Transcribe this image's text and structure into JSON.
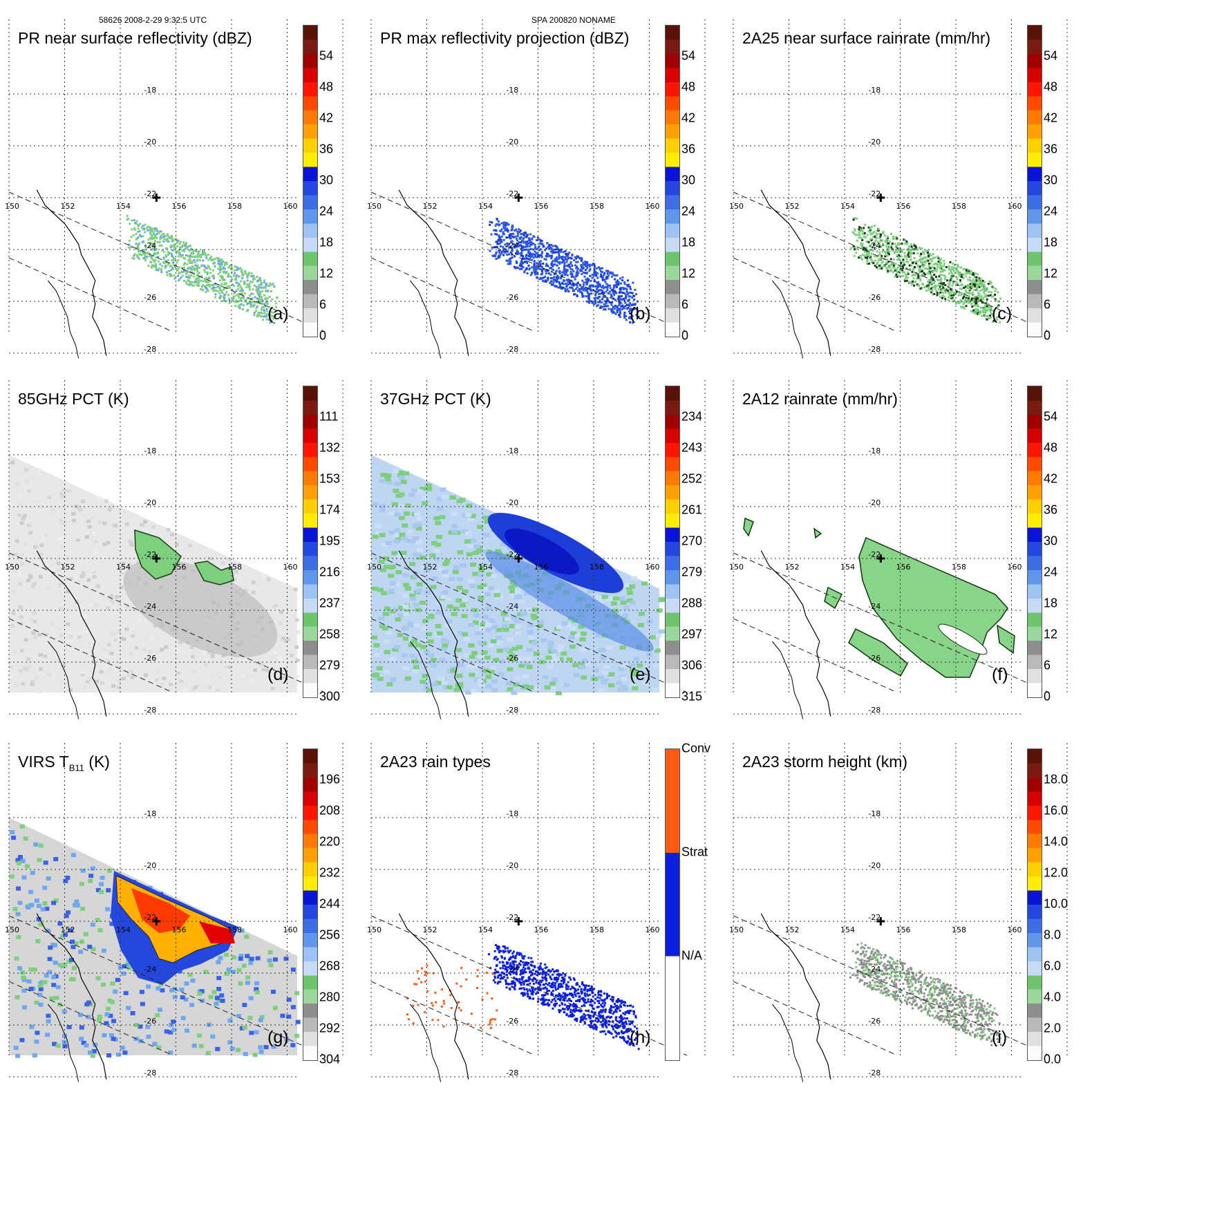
{
  "header": {
    "left": "58626 2008-2-29 9:32:5 UTC",
    "center": "SPA 200820 NONAME"
  },
  "map": {
    "lon_labels": [
      "150",
      "152",
      "154",
      "156",
      "158",
      "160"
    ],
    "lat_labels": [
      "-18",
      "-20",
      "-22",
      "-24",
      "-26",
      "-28"
    ]
  },
  "chart_data": [
    {
      "type": "heatmap",
      "id": "a",
      "title": "PR near surface reflectivity (dBZ)",
      "tag": "(a)",
      "colorbar_labels": [
        "54",
        "48",
        "42",
        "36",
        "30",
        "24",
        "18",
        "12",
        "6",
        "0"
      ],
      "range": [
        0,
        60
      ]
    },
    {
      "type": "heatmap",
      "id": "b",
      "title": "PR max reflectivity projection (dBZ)",
      "tag": "(b)",
      "colorbar_labels": [
        "54",
        "48",
        "42",
        "36",
        "30",
        "24",
        "18",
        "12",
        "6",
        "0"
      ],
      "range": [
        0,
        60
      ]
    },
    {
      "type": "heatmap",
      "id": "c",
      "title": "2A25 near surface rainrate (mm/hr)",
      "tag": "(c)",
      "colorbar_labels": [
        "54",
        "48",
        "42",
        "36",
        "30",
        "24",
        "18",
        "12",
        "6",
        "0"
      ],
      "range": [
        0,
        60
      ]
    },
    {
      "type": "heatmap",
      "id": "d",
      "title": "85GHz PCT (K)",
      "tag": "(d)",
      "colorbar_labels": [
        "111",
        "132",
        "153",
        "174",
        "195",
        "216",
        "237",
        "258",
        "279",
        "300"
      ],
      "range": [
        300,
        90
      ]
    },
    {
      "type": "heatmap",
      "id": "e",
      "title": "37GHz PCT (K)",
      "tag": "(e)",
      "colorbar_labels": [
        "234",
        "243",
        "252",
        "261",
        "270",
        "279",
        "288",
        "297",
        "306",
        "315"
      ],
      "range": [
        315,
        225
      ]
    },
    {
      "type": "heatmap",
      "id": "f",
      "title": "2A12 rainrate (mm/hr)",
      "tag": "(f)",
      "colorbar_labels": [
        "54",
        "48",
        "42",
        "36",
        "30",
        "24",
        "18",
        "12",
        "6",
        "0"
      ],
      "range": [
        0,
        60
      ]
    },
    {
      "type": "heatmap",
      "id": "g",
      "title": "VIRS T",
      "title_sub": "B11",
      "title_suffix": " (K)",
      "tag": "(g)",
      "colorbar_labels": [
        "196",
        "208",
        "220",
        "232",
        "244",
        "256",
        "268",
        "280",
        "292",
        "304"
      ],
      "range": [
        304,
        184
      ]
    },
    {
      "type": "heatmap",
      "id": "h",
      "title": "2A23 rain types",
      "tag": "(h)",
      "colorbar_labels": [
        "Conv",
        "Strat",
        "N/A"
      ],
      "categories": [
        "N/A",
        "Strat",
        "Conv"
      ]
    },
    {
      "type": "heatmap",
      "id": "i",
      "title": "2A23 storm height (km)",
      "tag": "(i)",
      "colorbar_labels": [
        "18.0",
        "16.0",
        "14.0",
        "12.0",
        "10.0",
        "8.0",
        "6.0",
        "4.0",
        "2.0",
        "0.0"
      ],
      "range": [
        0,
        20
      ]
    }
  ],
  "colors": {
    "scale": [
      "#fbfbfb",
      "#e0e0e0",
      "#b9b9b9",
      "#8e8e8e",
      "#9ad79a",
      "#6cc56c",
      "#c6d9f5",
      "#9cc3f2",
      "#5e96ec",
      "#3d6ee8",
      "#2347e0",
      "#0a14d8",
      "#ffee00",
      "#ffd000",
      "#ffa000",
      "#ff7a00",
      "#ff4a00",
      "#ff1500",
      "#d90000",
      "#a00000",
      "#7a1a10",
      "#5a1208"
    ],
    "rain_conv": "#ff5a14",
    "rain_strat": "#0a1ee0",
    "rain_na": "#ffffff"
  }
}
